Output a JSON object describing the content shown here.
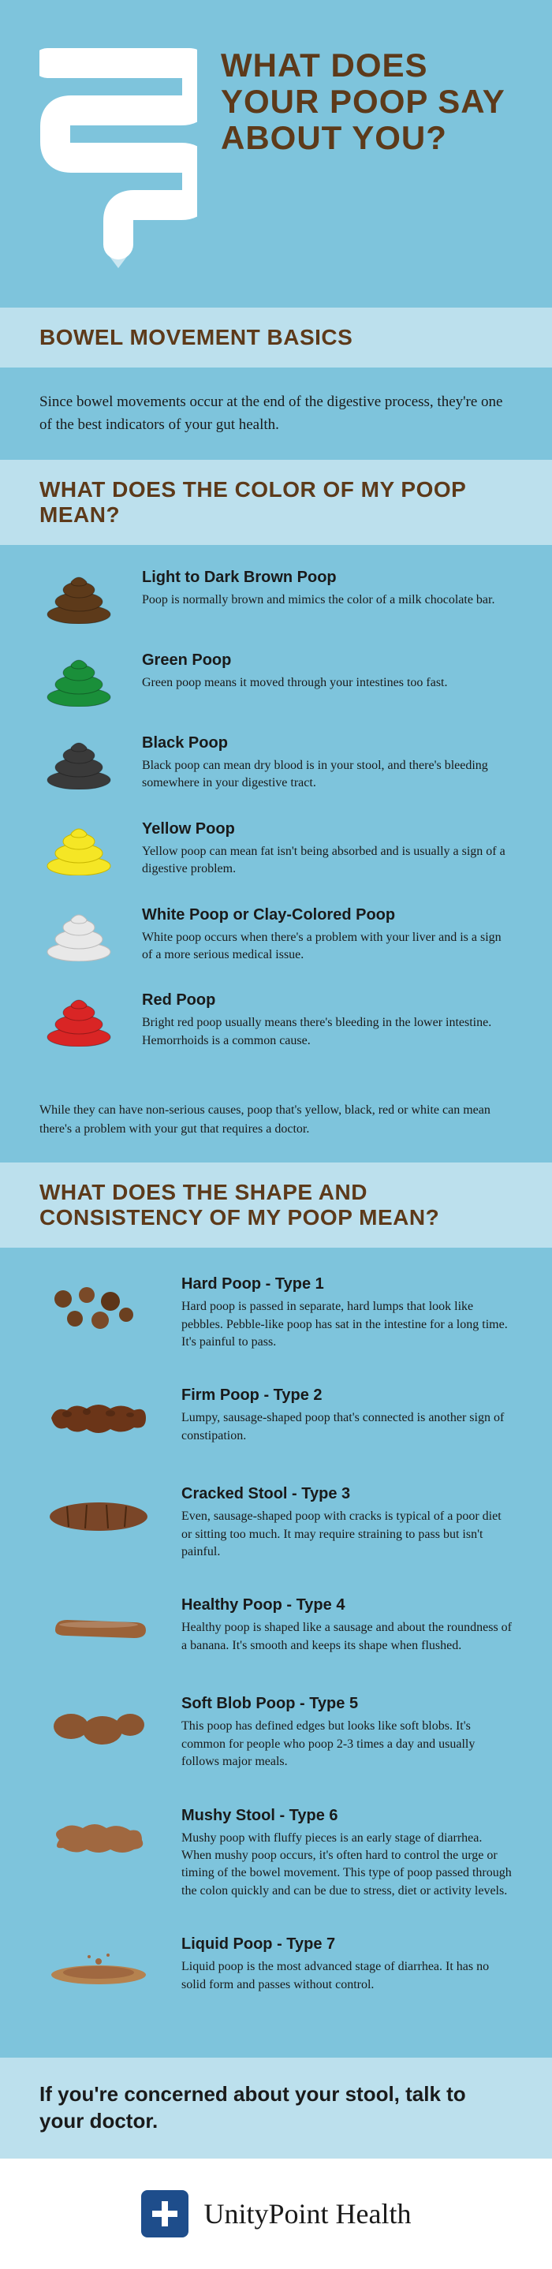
{
  "title": "WHAT DOES YOUR POOP SAY ABOUT YOU?",
  "section1": {
    "heading": "BOWEL MOVEMENT BASICS",
    "intro": "Since bowel movements occur at the end of the digestive process, they're one of the best indicators of your gut health."
  },
  "colorSection": {
    "heading": "WHAT DOES THE COLOR OF MY POOP MEAN?",
    "items": [
      {
        "title": "Light to Dark Brown Poop",
        "desc": "Poop is normally brown and mimics the color of a milk chocolate bar.",
        "color": "#5d3a1a"
      },
      {
        "title": "Green Poop",
        "desc": "Green poop means it moved through your intestines too fast.",
        "color": "#1a8f3a"
      },
      {
        "title": "Black Poop",
        "desc": "Black poop can mean dry blood is in your stool, and there's bleeding somewhere in your digestive tract.",
        "color": "#3a3a3a"
      },
      {
        "title": "Yellow Poop",
        "desc": "Yellow poop can mean fat isn't being absorbed and is usually a sign of a digestive problem.",
        "color": "#f5e625"
      },
      {
        "title": "White Poop or Clay-Colored Poop",
        "desc": "White poop occurs when there's a problem with your liver and is a sign of a more serious medical issue.",
        "color": "#e8e8e8"
      },
      {
        "title": "Red Poop",
        "desc": "Bright red poop usually means there's bleeding in the lower intestine. Hemorrhoids is a common cause.",
        "color": "#d92525"
      }
    ],
    "note": "While they can have non-serious causes, poop that's yellow, black, red or white can mean there's a problem with your gut that requires a doctor."
  },
  "shapeSection": {
    "heading": "WHAT DOES THE SHAPE AND CONSISTENCY OF MY POOP MEAN?",
    "items": [
      {
        "title": "Hard Poop - Type 1",
        "desc": "Hard poop is passed in separate, hard lumps that look like pebbles. Pebble-like poop has sat in the intestine for a long time. It's painful to pass."
      },
      {
        "title": "Firm Poop - Type 2",
        "desc": "Lumpy, sausage-shaped poop that's connected is another sign of constipation."
      },
      {
        "title": "Cracked Stool - Type 3",
        "desc": "Even, sausage-shaped poop with cracks is typical of a poor diet or sitting too much. It may require straining to pass but isn't painful."
      },
      {
        "title": "Healthy Poop - Type 4",
        "desc": "Healthy poop is shaped like a sausage and about the roundness of a banana. It's smooth and keeps its shape when flushed."
      },
      {
        "title": "Soft Blob Poop - Type 5",
        "desc": "This poop has defined edges but looks like soft blobs. It's common for people who poop 2-3 times a day and usually follows major meals."
      },
      {
        "title": "Mushy Stool - Type 6",
        "desc": "Mushy poop with fluffy pieces is an early stage of diarrhea. When mushy poop occurs, it's often hard to control the urge or timing of the bowel movement. This type of poop passed through the colon quickly and can be due to stress, diet or activity levels."
      },
      {
        "title": "Liquid Poop - Type 7",
        "desc": "Liquid poop is the most advanced stage of diarrhea. It has no solid form and passes without control."
      }
    ]
  },
  "conclusion": "If you're concerned about your stool, talk to your doctor.",
  "brand": "UnityPoint Health",
  "colors": {
    "bg": "#7ec4dc",
    "bar": "#bce0ed",
    "brown": "#5d3a1a",
    "poopBrown": "#8b5a2b"
  }
}
